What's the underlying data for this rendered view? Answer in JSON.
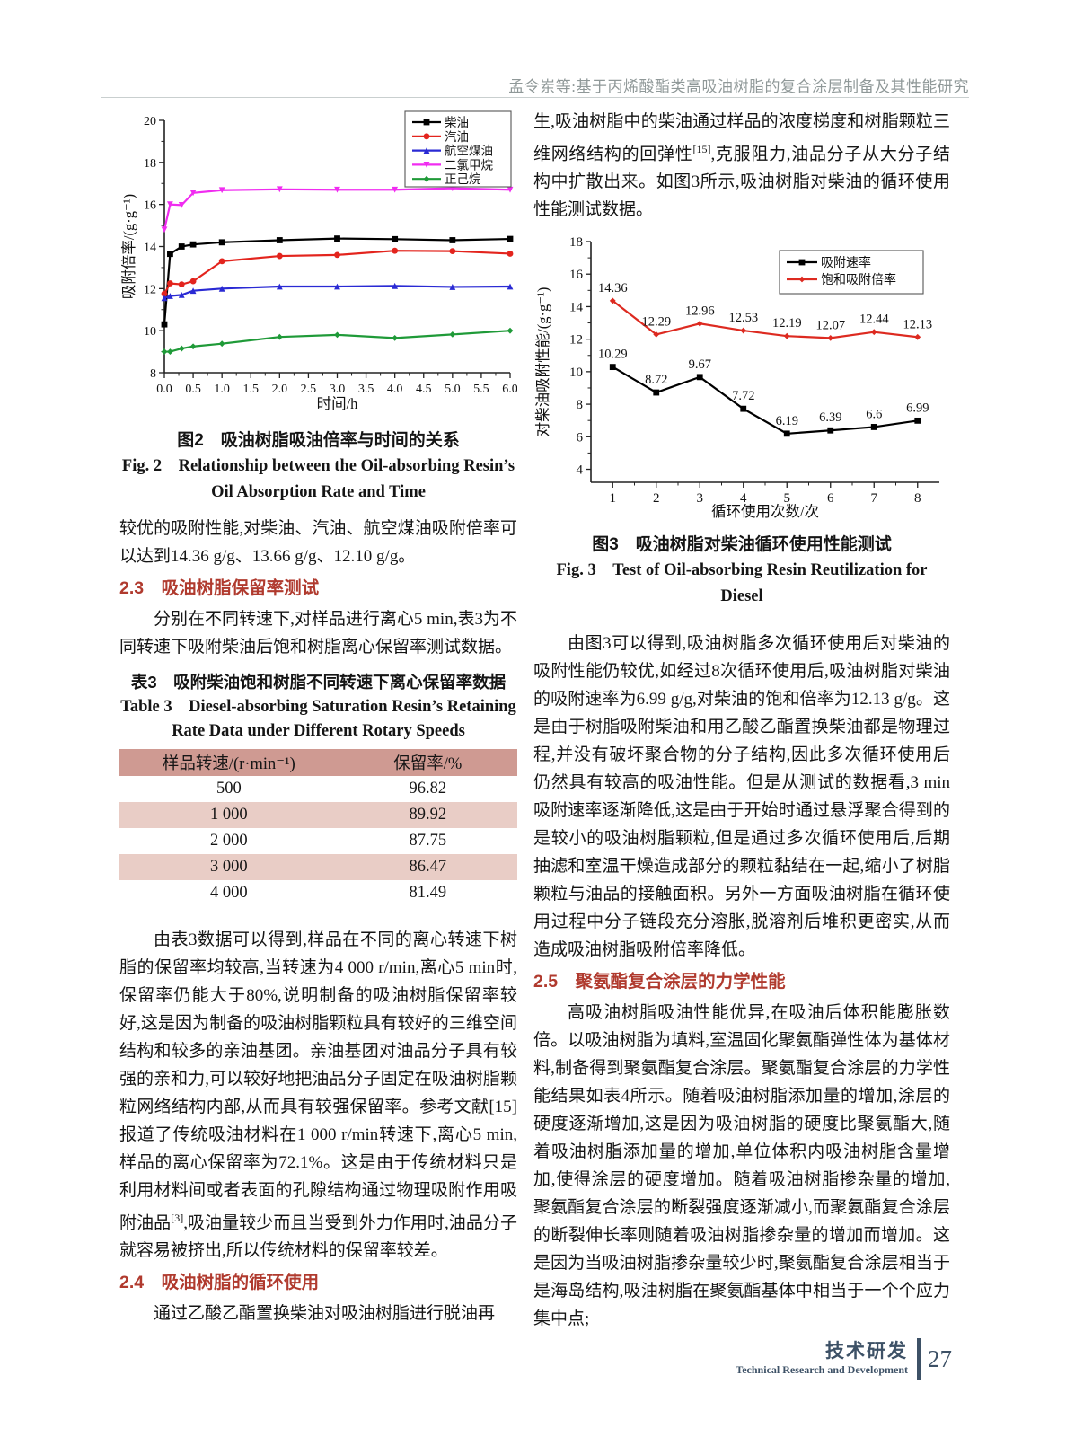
{
  "header": {
    "title": "孟令岽等:基于丙烯酸酯类高吸油树脂的复合涂层制备及其性能研究"
  },
  "left_column": {
    "p1": "较优的吸附性能,对柴油、汽油、航空煤油吸附倍率可以达到14.36 g/g、13.66 g/g、12.10 g/g。",
    "section_2_3": "2.3　吸油树脂保留率测试",
    "p2": "分别在不同转速下,对样品进行离心5 min,表3为不同转速下吸附柴油后饱和树脂离心保留率测试数据。",
    "p3_pre": "由表3数据可以得到,样品在不同的离心转速下树脂的保留率均较高,当转速为4 000 r/min,离心5 min时,保留率仍能大于80%,说明制备的吸油树脂保留率较好,这是因为制备的吸油树脂颗粒具有较好的三维空间结构和较多的亲油基团。亲油基团对油品分子具有较强的亲和力,可以较好地把油品分子固定在吸油树脂颗粒网络结构内部,从而具有较强保留率。参考文献[15]报道了传统吸油材料在1 000 r/min转速下,离心5 min,样品的离心保留率为72.1%。这是由于传统材料只是利用材料间或者表面的孔隙结构通过物理吸附作用吸附油品",
    "p3_sup": "[3]",
    "p3_post": ",吸油量较少而且当受到外力作用时,油品分子就容易被挤出,所以传统材料的保留率较差。",
    "section_2_4": "2.4　吸油树脂的循环使用",
    "p4": "通过乙酸乙酯置换柴油对吸油树脂进行脱油再"
  },
  "right_column": {
    "p1_pre": "生,吸油树脂中的柴油通过样品的浓度梯度和树脂颗粒三维网络结构的回弹性",
    "p1_sup": "[15]",
    "p1_post": ",克服阻力,油品分子从大分子结构中扩散出来。如图3所示,吸油树脂对柴油的循环使用性能测试数据。",
    "p2": "由图3可以得到,吸油树脂多次循环使用后对柴油的吸附性能仍较优,如经过8次循环使用后,吸油树脂对柴油的吸附速率为6.99 g/g,对柴油的饱和倍率为12.13 g/g。这是由于树脂吸附柴油和用乙酸乙酯置换柴油都是物理过程,并没有破坏聚合物的分子结构,因此多次循环使用后仍然具有较高的吸油性能。但是从测试的数据看,3 min吸附速率逐渐降低,这是由于开始时通过悬浮聚合得到的是较小的吸油树脂颗粒,但是通过多次循环使用后,后期抽滤和室温干燥造成部分的颗粒黏结在一起,缩小了树脂颗粒与油品的接触面积。另外一方面吸油树脂在循环使用过程中分子链段充分溶胀,脱溶剂后堆积更密实,从而造成吸油树脂吸附倍率降低。",
    "section_2_5": "2.5　聚氨酯复合涂层的力学性能",
    "p3": "高吸油树脂吸油性能优异,在吸油后体积能膨胀数倍。以吸油树脂为填料,室温固化聚氨酯弹性体为基体材料,制备得到聚氨酯复合涂层。聚氨酯复合涂层的力学性能结果如表4所示。随着吸油树脂添加量的增加,涂层的硬度逐渐增加,这是因为吸油树脂的硬度比聚氨酯大,随着吸油树脂添加量的增加,单位体积内吸油树脂含量增加,使得涂层的硬度增加。随着吸油树脂掺杂量的增加,聚氨酯复合涂层的断裂强度逐渐减小,而聚氨酯复合涂层的断裂伸长率则随着吸油树脂掺杂量的增加而增加。这是因为当吸油树脂掺杂量较少时,聚氨酯复合涂层相当于是海岛结构,吸油树脂在聚氨酯基体中相当于一个个应力集中点;"
  },
  "figures": {
    "fig2": {
      "caption_zh": "图2　吸油树脂吸油倍率与时间的关系",
      "caption_en_line1": "Fig. 2　Relationship between the Oil-absorbing Resin’s",
      "caption_en_line2": "Oil Absorption Rate and Time"
    },
    "fig3": {
      "caption_zh": "图3　吸油树脂对柴油循环使用性能测试",
      "caption_en": "Fig. 3　Test of Oil-absorbing Resin Reutilization for Diesel"
    }
  },
  "table3": {
    "title_zh": "表3　吸附柴油饱和树脂不同转速下离心保留率数据",
    "title_en_line1": "Table 3　Diesel-absorbing Saturation Resin’s Retaining",
    "title_en_line2": "Rate Data under Different Rotary Speeds",
    "headers": [
      "样品转速/(r·min⁻¹)",
      "保留率/%"
    ],
    "rows": [
      [
        "500",
        "96.82"
      ],
      [
        "1 000",
        "89.92"
      ],
      [
        "2 000",
        "87.75"
      ],
      [
        "3 000",
        "86.47"
      ],
      [
        "4 000",
        "81.49"
      ]
    ]
  },
  "footer": {
    "zh": "技术研发",
    "en": "Technical Research and Development",
    "page_number": "27"
  },
  "chart_data": [
    {
      "type": "line",
      "title": "",
      "xlabel": "时间/h",
      "ylabel": "吸附倍率/(g·g⁻¹)",
      "xlim": [
        0,
        6
      ],
      "ylim": [
        8,
        20
      ],
      "grid": false,
      "legend_position": "top-right",
      "xticks": {
        "values": [
          0,
          0.5,
          1,
          1.5,
          2,
          2.5,
          3,
          3.5,
          4,
          4.5,
          5,
          5.5,
          6
        ],
        "labels": [
          "0.0",
          "0.5",
          "1.0",
          "1.5",
          "2.0",
          "2.5",
          "3.0",
          "3.5",
          "4.0",
          "4.5",
          "5.0",
          "5.5",
          "6.0"
        ]
      },
      "yticks": {
        "values": [
          8,
          10,
          12,
          14,
          16,
          18,
          20
        ],
        "labels": [
          "8",
          "10",
          "12",
          "14",
          "16",
          "18",
          "20"
        ]
      },
      "x": [
        0,
        0.1,
        0.3,
        0.5,
        1,
        2,
        3,
        4,
        5,
        6
      ],
      "series": [
        {
          "name": "柴油",
          "color": "#000000",
          "marker": "square",
          "values": [
            10.3,
            13.65,
            14.0,
            14.1,
            14.2,
            14.3,
            14.38,
            14.35,
            14.3,
            14.36
          ]
        },
        {
          "name": "汽油",
          "color": "#e3241d",
          "marker": "circle",
          "values": [
            11.75,
            12.25,
            12.2,
            12.35,
            13.3,
            13.55,
            13.6,
            13.8,
            13.78,
            13.66
          ]
        },
        {
          "name": "航空煤油",
          "color": "#2a2ad4",
          "marker": "triangle",
          "values": [
            11.55,
            11.65,
            11.7,
            11.9,
            12.0,
            12.1,
            12.1,
            12.13,
            12.08,
            12.1
          ]
        },
        {
          "name": "二氯甲烷",
          "color": "#f02cf0",
          "marker": "triangle-down",
          "values": [
            14.8,
            16.0,
            15.97,
            16.55,
            16.68,
            16.72,
            16.7,
            16.7,
            16.77,
            16.7
          ]
        },
        {
          "name": "正己烷",
          "color": "#1f9a38",
          "marker": "diamond",
          "values": [
            9.0,
            9.0,
            9.15,
            9.25,
            9.38,
            9.7,
            9.8,
            9.65,
            9.82,
            10.0
          ]
        }
      ]
    },
    {
      "type": "line",
      "title": "",
      "xlabel": "循环使用次数/次",
      "ylabel": "对柴油吸附性能/(g·g⁻¹)",
      "xlim": [
        0.5,
        8.5
      ],
      "ylim": [
        3.2,
        18
      ],
      "grid": false,
      "legend_position": "top-right",
      "xticks": {
        "values": [
          1,
          2,
          3,
          4,
          5,
          6,
          7,
          8
        ],
        "labels": [
          "1",
          "2",
          "3",
          "4",
          "5",
          "6",
          "7",
          "8"
        ]
      },
      "yticks": {
        "values": [
          4,
          6,
          8,
          10,
          12,
          14,
          16,
          18
        ],
        "labels": [
          "4",
          "6",
          "8",
          "10",
          "12",
          "14",
          "16",
          "18"
        ]
      },
      "x": [
        1,
        2,
        3,
        4,
        5,
        6,
        7,
        8
      ],
      "series": [
        {
          "name": "吸附速率",
          "color": "#000000",
          "marker": "square",
          "values": [
            10.29,
            8.72,
            9.67,
            7.72,
            6.19,
            6.39,
            6.6,
            6.99
          ],
          "labels": [
            "10.29",
            "8.72",
            "9.67",
            "7.72",
            "6.19",
            "6.39",
            "6.6",
            "6.99"
          ]
        },
        {
          "name": "饱和吸附倍率",
          "color": "#dd2a20",
          "marker": "diamond",
          "values": [
            14.36,
            12.29,
            12.96,
            12.53,
            12.19,
            12.07,
            12.44,
            12.13
          ],
          "labels": [
            "14.36",
            "12.29",
            "12.96",
            "12.53",
            "12.19",
            "12.07",
            "12.44",
            "12.13"
          ]
        }
      ]
    }
  ]
}
